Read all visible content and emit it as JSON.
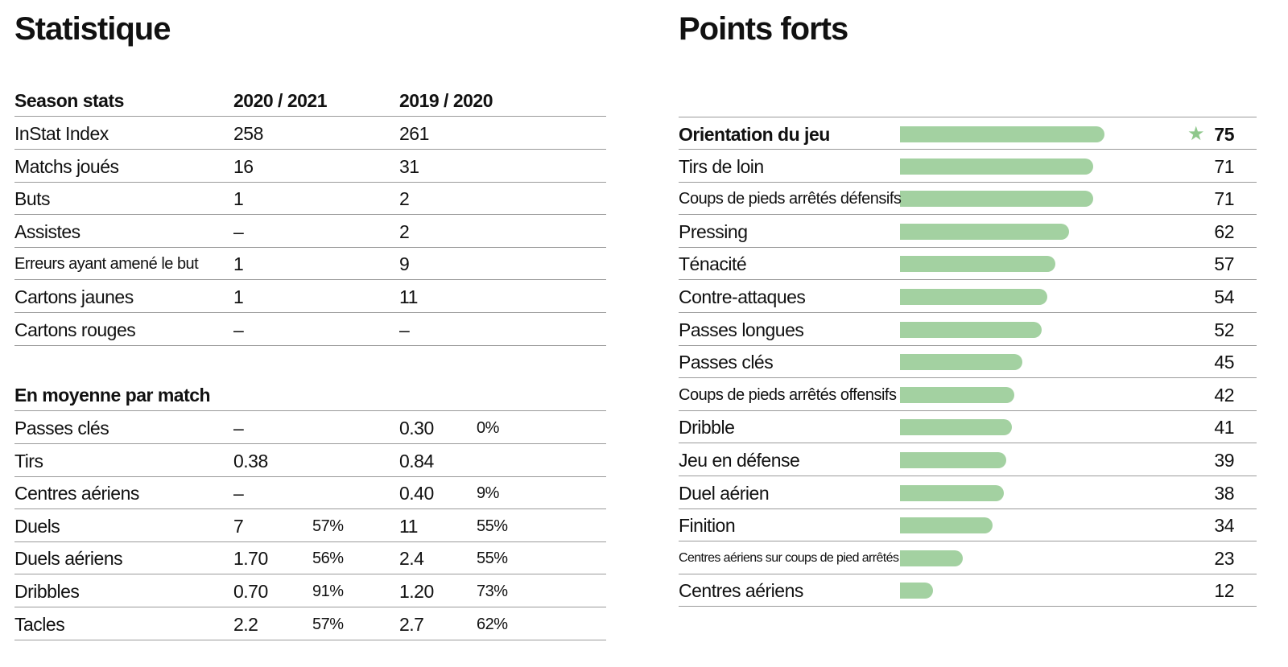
{
  "left": {
    "title": "Statistique",
    "season_header": {
      "label": "Season stats",
      "col1": "2020 / 2021",
      "col2": "2019 / 2020"
    },
    "season_rows": [
      {
        "label": "InStat Index",
        "v1": "258",
        "v2": "261"
      },
      {
        "label": "Matchs joués",
        "v1": "16",
        "v2": "31"
      },
      {
        "label": "Buts",
        "v1": "1",
        "v2": "2"
      },
      {
        "label": "Assistes",
        "v1": "–",
        "v2": "2"
      },
      {
        "label": "Erreurs ayant amené le but",
        "v1": "1",
        "v2": "9"
      },
      {
        "label": "Cartons jaunes",
        "v1": "1",
        "v2": "11"
      },
      {
        "label": "Cartons rouges",
        "v1": "–",
        "v2": "–"
      }
    ],
    "avg_header": {
      "label": "En moyenne par match"
    },
    "avg_rows": [
      {
        "label": "Passes clés",
        "v1": "–",
        "p1": "",
        "v2": "0.30",
        "p2": "0%"
      },
      {
        "label": "Tirs",
        "v1": "0.38",
        "p1": "",
        "v2": "0.84",
        "p2": ""
      },
      {
        "label": "Centres aériens",
        "v1": "–",
        "p1": "",
        "v2": "0.40",
        "p2": "9%"
      },
      {
        "label": "Duels",
        "v1": "7",
        "p1": "57%",
        "v2": "11",
        "p2": "55%"
      },
      {
        "label": "Duels aériens",
        "v1": "1.70",
        "p1": "56%",
        "v2": "2.4",
        "p2": "55%"
      },
      {
        "label": "Dribbles",
        "v1": "0.70",
        "p1": "91%",
        "v2": "1.20",
        "p2": "73%"
      },
      {
        "label": "Tacles",
        "v1": "2.2",
        "p1": "57%",
        "v2": "2.7",
        "p2": "62%"
      }
    ]
  },
  "right": {
    "title": "Points forts",
    "bar_color": "#a3d1a1",
    "star_icon": "star-icon",
    "items": [
      {
        "label": "Orientation du jeu",
        "value": 75
      },
      {
        "label": "Tirs de loin",
        "value": 71
      },
      {
        "label": "Coups de pieds arrêtés défensifs",
        "value": 71
      },
      {
        "label": "Pressing",
        "value": 62
      },
      {
        "label": "Ténacité",
        "value": 57
      },
      {
        "label": "Contre-attaques",
        "value": 54
      },
      {
        "label": "Passes longues",
        "value": 52
      },
      {
        "label": "Passes clés",
        "value": 45
      },
      {
        "label": "Coups de pieds arrêtés offensifs",
        "value": 42
      },
      {
        "label": "Dribble",
        "value": 41
      },
      {
        "label": "Jeu en défense",
        "value": 39
      },
      {
        "label": "Duel aérien",
        "value": 38
      },
      {
        "label": "Finition",
        "value": 34
      },
      {
        "label": "Centres aériens sur coups de pied arrêtés",
        "value": 23
      },
      {
        "label": "Centres aériens",
        "value": 12
      }
    ]
  }
}
